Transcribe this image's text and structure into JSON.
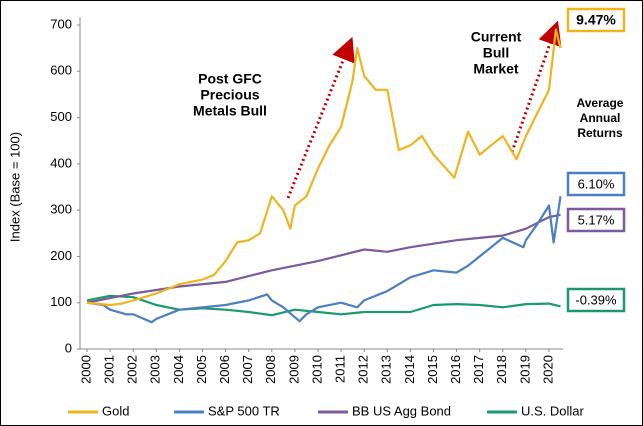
{
  "chart_data": {
    "type": "line",
    "y_label": "Index (Base = 100)",
    "ylim": [
      0,
      700
    ],
    "yticks": [
      0,
      100,
      200,
      300,
      400,
      500,
      600,
      700
    ],
    "xlim": [
      2000,
      2020.5
    ],
    "xticks": [
      2000,
      2001,
      2002,
      2003,
      2004,
      2005,
      2006,
      2007,
      2008,
      2009,
      2010,
      2011,
      2012,
      2013,
      2014,
      2015,
      2016,
      2017,
      2018,
      2019,
      2020
    ],
    "annotations": [
      {
        "lines": [
          "Post GFC",
          "Precious",
          "Metals Bull"
        ],
        "color": "#c00000"
      },
      {
        "lines": [
          "Current",
          "Bull",
          "Market"
        ],
        "color": "#1aa05a"
      }
    ],
    "returns_title": [
      "Average",
      "Annual",
      "Returns"
    ],
    "series": [
      {
        "name": "Gold",
        "color": "#f0b41c",
        "end_label": "9.47%",
        "x": [
          2000,
          2001,
          2001.5,
          2002,
          2003,
          2004,
          2005,
          2005.5,
          2006,
          2006.5,
          2007,
          2007.5,
          2008,
          2008.5,
          2008.8,
          2009,
          2009.5,
          2010,
          2010.5,
          2011,
          2011.5,
          2011.7,
          2012,
          2012.5,
          2013,
          2013.5,
          2014,
          2014.5,
          2015,
          2015.9,
          2016.5,
          2017,
          2017.5,
          2018,
          2018.6,
          2019,
          2019.5,
          2020,
          2020.3,
          2020.5
        ],
        "values": [
          100,
          95,
          98,
          105,
          120,
          140,
          150,
          160,
          190,
          230,
          235,
          250,
          330,
          300,
          260,
          310,
          330,
          390,
          440,
          480,
          580,
          650,
          590,
          560,
          560,
          430,
          440,
          460,
          420,
          370,
          470,
          420,
          440,
          460,
          410,
          460,
          510,
          560,
          690,
          650
        ]
      },
      {
        "name": "S&P 500 TR",
        "color": "#4a7fc1",
        "end_label": "6.10%",
        "x": [
          2000,
          2000.7,
          2001,
          2001.7,
          2002,
          2002.8,
          2003,
          2003.5,
          2004,
          2005,
          2006,
          2007,
          2007.8,
          2008,
          2008.5,
          2009.2,
          2009.5,
          2010,
          2011,
          2011.7,
          2012,
          2013,
          2014,
          2015,
          2016,
          2016.5,
          2017,
          2018,
          2018.9,
          2019,
          2019.5,
          2020,
          2020.2,
          2020.5
        ],
        "values": [
          100,
          95,
          85,
          75,
          75,
          58,
          65,
          75,
          85,
          90,
          95,
          105,
          118,
          105,
          90,
          60,
          75,
          90,
          100,
          90,
          105,
          125,
          155,
          170,
          165,
          180,
          200,
          240,
          220,
          235,
          270,
          310,
          230,
          330
        ]
      },
      {
        "name": "BB US Agg Bond",
        "color": "#7b5a9e",
        "end_label": "5.17%",
        "x": [
          2000,
          2002,
          2004,
          2006,
          2008,
          2010,
          2012,
          2013,
          2014,
          2016,
          2017,
          2018,
          2019,
          2020,
          2020.5
        ],
        "values": [
          100,
          120,
          135,
          145,
          170,
          190,
          215,
          210,
          220,
          235,
          240,
          245,
          260,
          285,
          290
        ]
      },
      {
        "name": "U.S. Dollar",
        "color": "#1a9a6c",
        "end_label": "-0.39%",
        "x": [
          2000,
          2001,
          2002,
          2003,
          2004,
          2005,
          2006,
          2007,
          2008,
          2009,
          2010,
          2011,
          2012,
          2013,
          2014,
          2015,
          2016,
          2017,
          2018,
          2019,
          2020,
          2020.5
        ],
        "values": [
          105,
          115,
          112,
          95,
          85,
          88,
          85,
          80,
          73,
          85,
          80,
          75,
          80,
          80,
          80,
          95,
          97,
          95,
          90,
          97,
          98,
          92
        ]
      }
    ]
  }
}
